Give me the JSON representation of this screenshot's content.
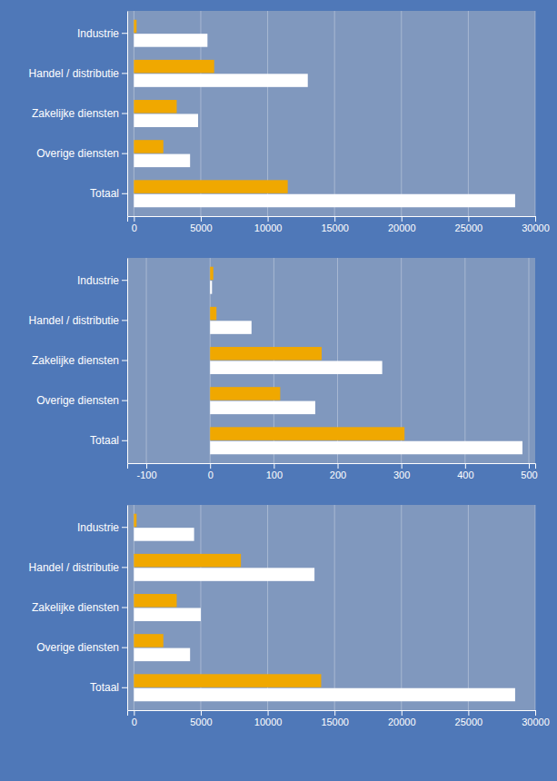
{
  "chart_data": [
    {
      "type": "bar",
      "orientation": "horizontal",
      "grid": true,
      "categories": [
        "Industrie",
        "Handel / distributie",
        "Zakelijke diensten",
        "Overige diensten",
        "Totaal"
      ],
      "series": [
        {
          "color": "#f0a800",
          "values": [
            200,
            6000,
            3200,
            2200,
            11500
          ]
        },
        {
          "color": "#ffffff",
          "values": [
            5500,
            13000,
            4800,
            4200,
            28500
          ]
        }
      ],
      "xlim": [
        -500,
        30000
      ],
      "xticks": [
        0,
        5000,
        10000,
        15000,
        20000,
        25000,
        30000
      ]
    },
    {
      "type": "bar",
      "orientation": "horizontal",
      "grid": true,
      "categories": [
        "Industrie",
        "Handel / distributie",
        "Zakelijke diensten",
        "Overige diensten",
        "Totaal"
      ],
      "series": [
        {
          "color": "#f0a800",
          "values": [
            5,
            10,
            175,
            110,
            305
          ]
        },
        {
          "color": "#ffffff",
          "values": [
            3,
            65,
            270,
            165,
            490
          ]
        }
      ],
      "xlim": [
        -130,
        510
      ],
      "xticks": [
        -100,
        0,
        100,
        200,
        300,
        400,
        500
      ]
    },
    {
      "type": "bar",
      "orientation": "horizontal",
      "grid": true,
      "categories": [
        "Industrie",
        "Handel / distributie",
        "Zakelijke diensten",
        "Overige diensten",
        "Totaal"
      ],
      "series": [
        {
          "color": "#f0a800",
          "values": [
            200,
            8000,
            3200,
            2200,
            14000
          ]
        },
        {
          "color": "#ffffff",
          "values": [
            4500,
            13500,
            5000,
            4200,
            28500
          ]
        }
      ],
      "xlim": [
        -500,
        30000
      ],
      "xticks": [
        0,
        5000,
        10000,
        15000,
        20000,
        25000,
        30000
      ]
    }
  ]
}
